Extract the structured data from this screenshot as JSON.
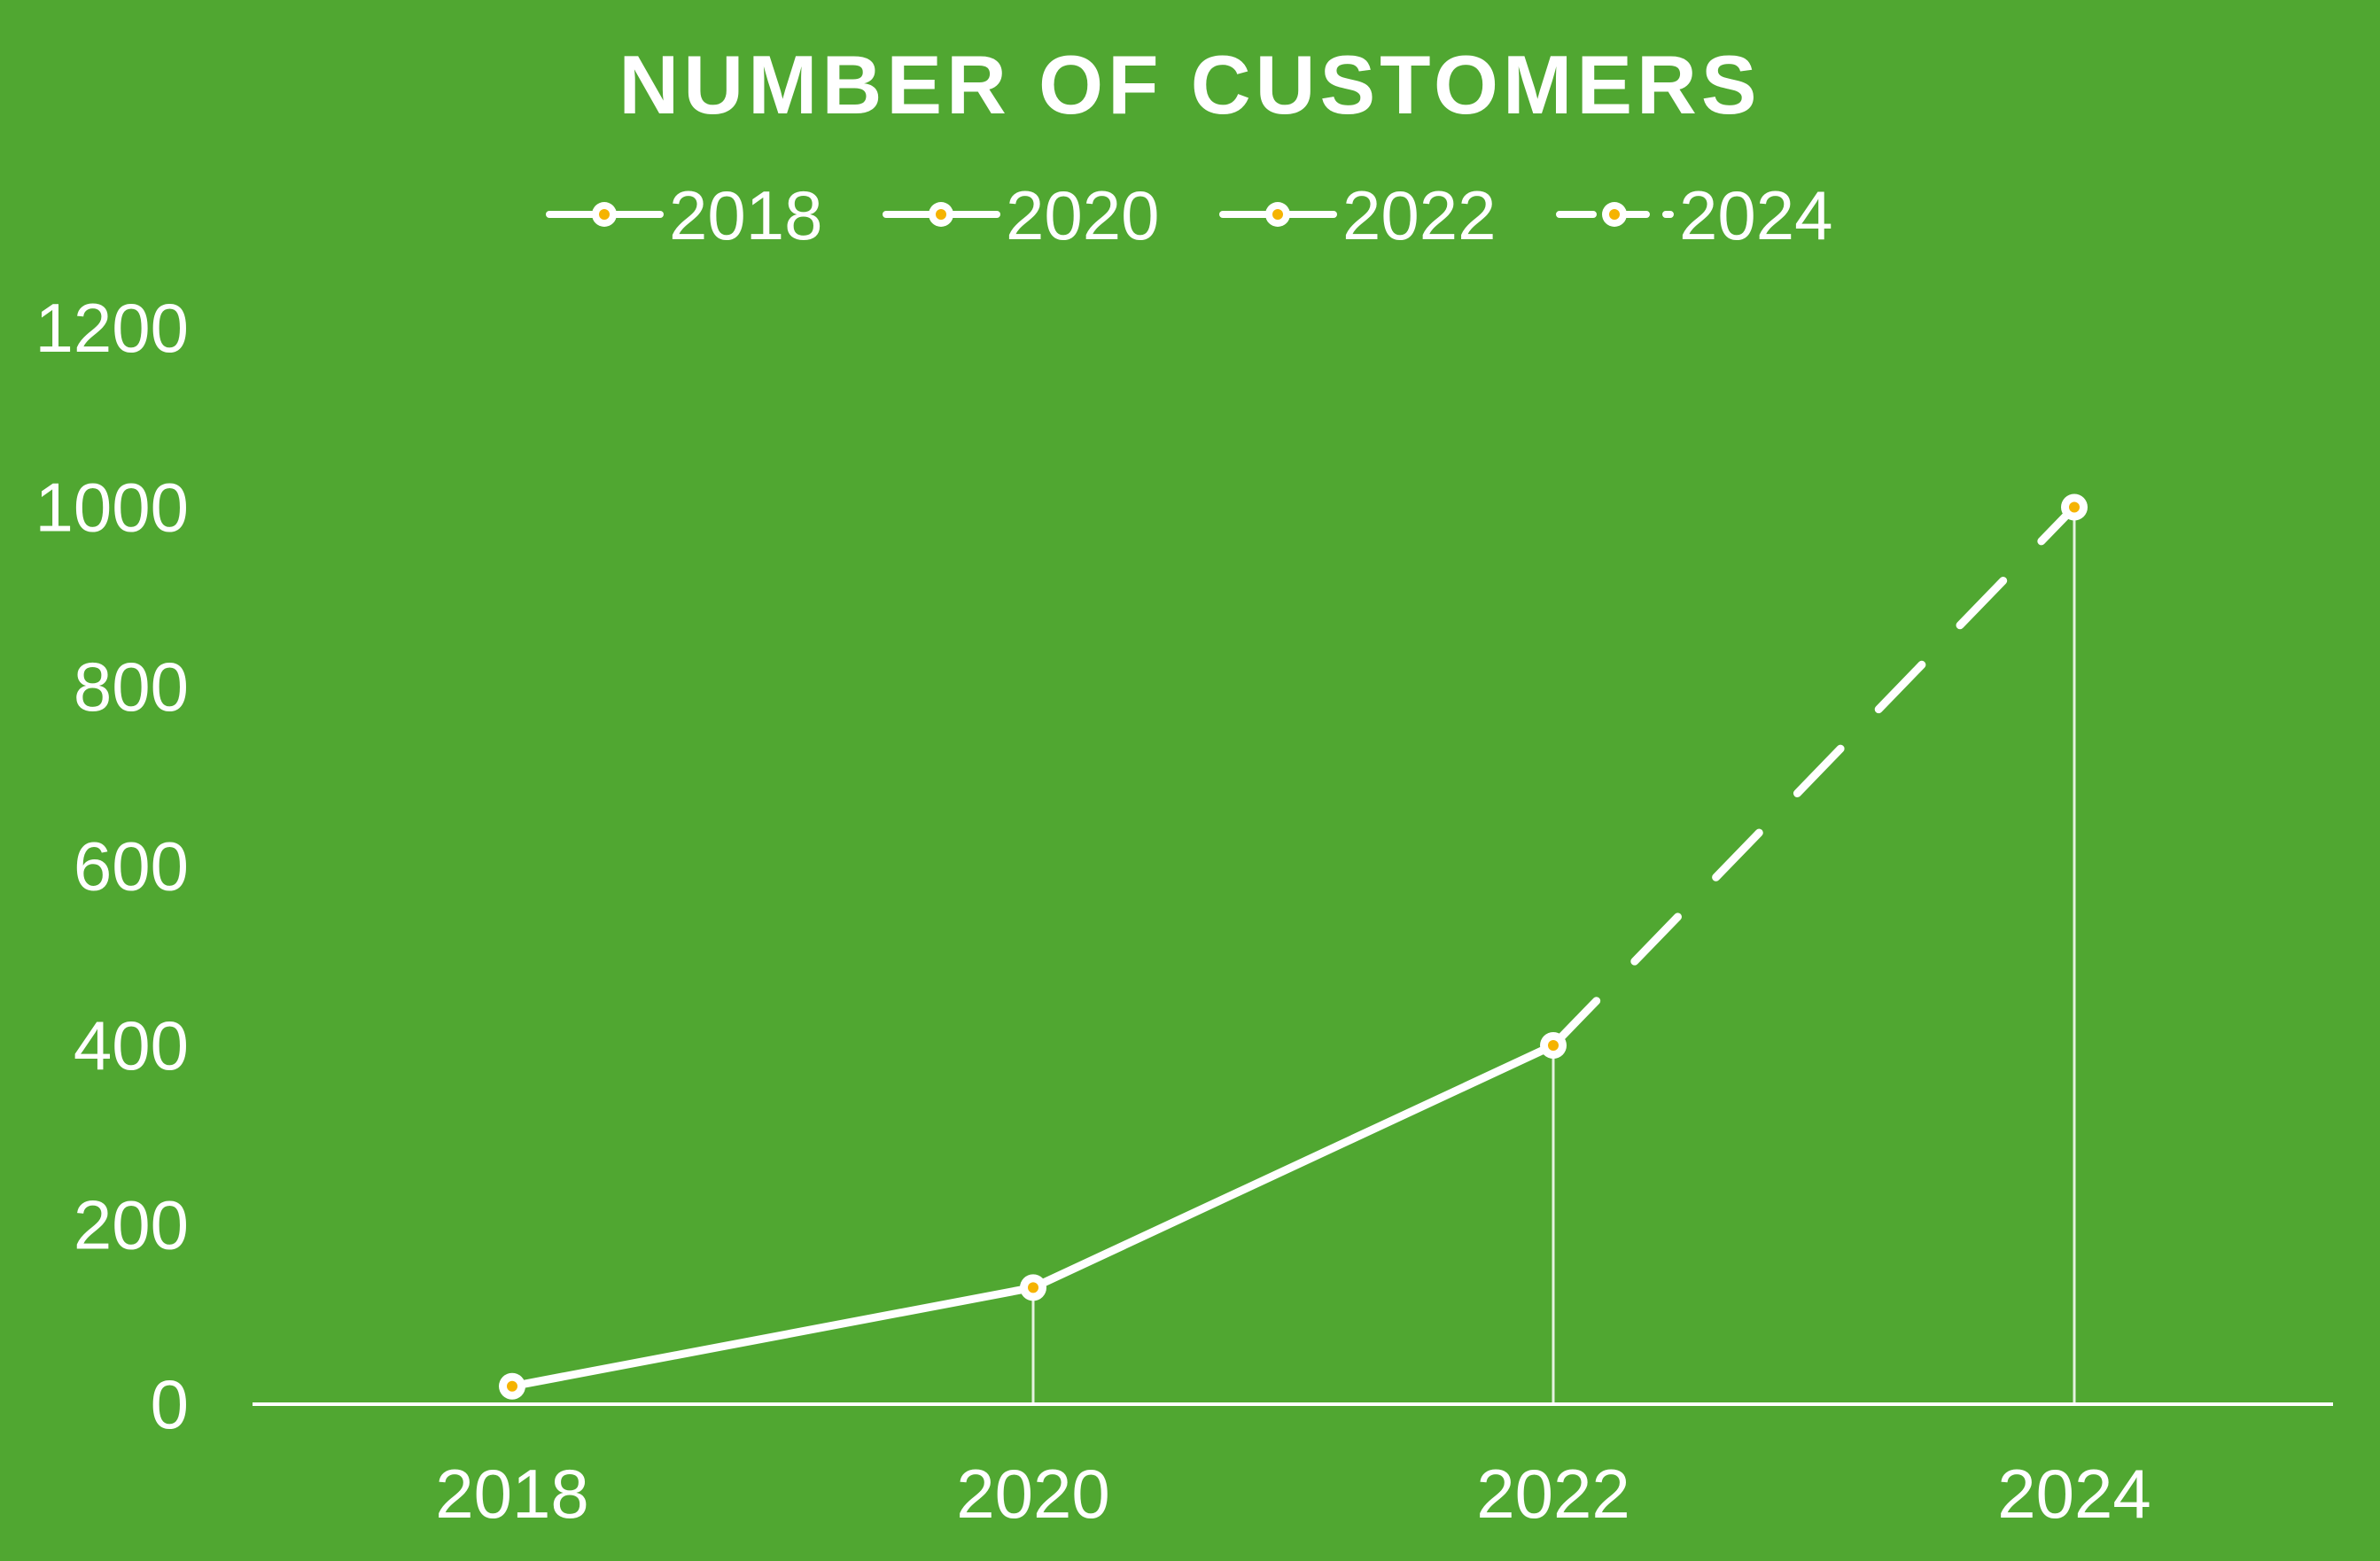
{
  "chart_data": {
    "type": "line",
    "title": "NUMBER OF CUSTOMERS",
    "categories": [
      "2018",
      "2020",
      "2022",
      "2024"
    ],
    "legend": [
      "2018",
      "2020",
      "2022",
      "2024"
    ],
    "values": [
      20,
      130,
      400,
      1000
    ],
    "projected_from_index": 2,
    "y_ticks": [
      "0",
      "200",
      "400",
      "600",
      "800",
      "1000",
      "1200"
    ],
    "ylim": [
      0,
      1200
    ],
    "xlabel": "",
    "ylabel": "",
    "grid": false,
    "legend_position": "top-center",
    "colors": {
      "background": "#50a731",
      "line": "#ffffff",
      "marker_fill": "#ffffff",
      "marker_center": "#f5b301"
    }
  }
}
